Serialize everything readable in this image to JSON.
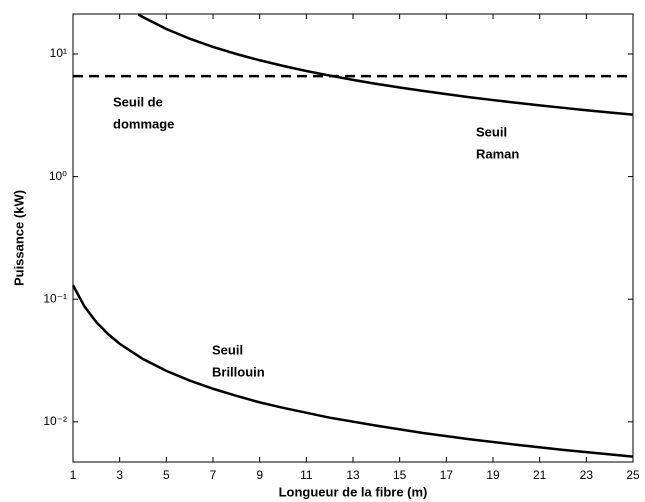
{
  "chart_data": {
    "type": "line",
    "xlabel": "Longueur de la fibre (m)",
    "ylabel": "Puissance (kW)",
    "xlim": [
      1,
      25
    ],
    "xticks": [
      1,
      3,
      5,
      7,
      9,
      11,
      13,
      15,
      17,
      19,
      21,
      23,
      25
    ],
    "ylim": [
      0.0047,
      21.2
    ],
    "yscale": "log",
    "yticks": [
      {
        "value": 0.01,
        "label": "10⁻²"
      },
      {
        "value": 0.1,
        "label": "10⁻¹"
      },
      {
        "value": 1,
        "label": "10⁰"
      },
      {
        "value": 10,
        "label": "10¹"
      }
    ],
    "grid": false,
    "series": [
      {
        "color": "#000000",
        "dash": "solid",
        "x": [
          3.8,
          4,
          5,
          6,
          7,
          8,
          9,
          10,
          11,
          12,
          13,
          14,
          15,
          16,
          17,
          18,
          19,
          20,
          21,
          22,
          23,
          24,
          25
        ],
        "values": [
          21.05,
          20,
          16,
          13.33,
          11.43,
          10,
          8.89,
          8,
          7.27,
          6.67,
          6.15,
          5.71,
          5.33,
          5,
          4.71,
          4.44,
          4.21,
          4,
          3.81,
          3.64,
          3.48,
          3.33,
          3.2
        ]
      },
      {
        "color": "#000000",
        "dash": "solid",
        "x": [
          1,
          1.5,
          2,
          2.5,
          3,
          4,
          5,
          6,
          7,
          8,
          9,
          10,
          12,
          14,
          16,
          18,
          20,
          22,
          25
        ],
        "values": [
          0.13,
          0.0867,
          0.065,
          0.052,
          0.0433,
          0.0325,
          0.026,
          0.0217,
          0.0186,
          0.0163,
          0.0144,
          0.013,
          0.0108,
          0.0093,
          0.0081,
          0.0072,
          0.0065,
          0.0059,
          0.0052
        ]
      },
      {
        "color": "#000000",
        "dash": "dashed",
        "x": [
          1,
          25
        ],
        "values": [
          6.6,
          6.6
        ]
      }
    ],
    "annotations": [
      {
        "lines": [
          "Seuil de",
          "dommage"
        ]
      },
      {
        "lines": [
          "Seuil",
          "Raman"
        ]
      },
      {
        "lines": [
          "Seuil",
          "Brillouin"
        ]
      }
    ]
  }
}
